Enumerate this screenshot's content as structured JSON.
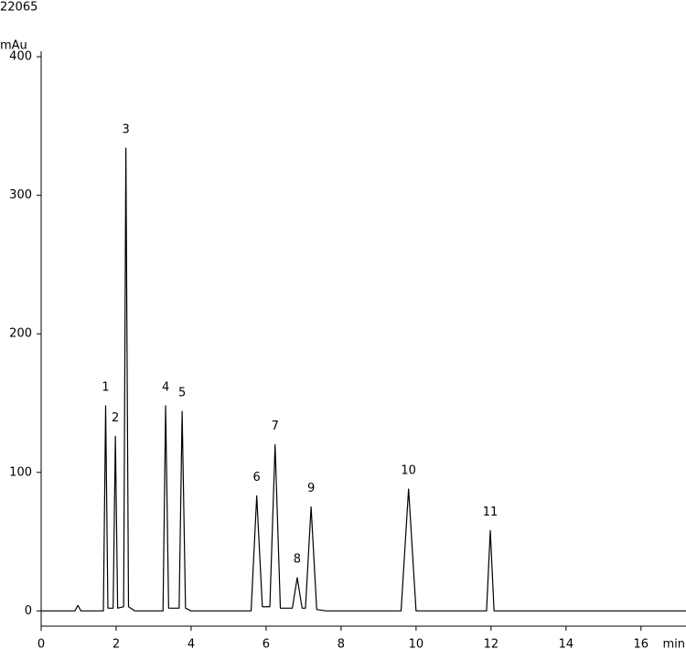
{
  "chart_data": {
    "type": "line",
    "title": "22065",
    "y_label": "mAu",
    "x_label": "min",
    "color": "#000000",
    "x": [
      0,
      0.9,
      0.98,
      1.06,
      1.66,
      1.72,
      1.78,
      1.92,
      1.98,
      2.04,
      2.2,
      2.26,
      2.33,
      2.5,
      3.25,
      3.32,
      3.4,
      3.68,
      3.76,
      3.85,
      4.0,
      5.6,
      5.75,
      5.9,
      6.1,
      6.24,
      6.38,
      6.7,
      6.83,
      6.96,
      7.05,
      7.2,
      7.35,
      7.6,
      9.6,
      9.8,
      10.0,
      11.88,
      11.98,
      12.08,
      17.2
    ],
    "values": [
      0,
      0,
      4,
      0,
      0,
      148,
      2,
      2,
      126,
      2,
      3,
      334,
      3,
      0,
      0,
      148,
      2,
      2,
      144,
      2,
      0,
      0,
      83,
      3,
      3,
      120,
      2,
      2,
      24,
      2,
      2,
      75,
      1,
      0,
      0,
      88,
      0,
      0,
      58,
      0,
      0
    ],
    "annotations": [
      {
        "text": "1",
        "x": 1.72,
        "y": 148
      },
      {
        "text": "2",
        "x": 1.98,
        "y": 126
      },
      {
        "text": "3",
        "x": 2.26,
        "y": 334
      },
      {
        "text": "4",
        "x": 3.32,
        "y": 148
      },
      {
        "text": "5",
        "x": 3.76,
        "y": 144
      },
      {
        "text": "6",
        "x": 5.75,
        "y": 83
      },
      {
        "text": "7",
        "x": 6.24,
        "y": 120
      },
      {
        "text": "8",
        "x": 6.83,
        "y": 24
      },
      {
        "text": "9",
        "x": 7.2,
        "y": 75
      },
      {
        "text": "10",
        "x": 9.8,
        "y": 88
      },
      {
        "text": "11",
        "x": 11.98,
        "y": 58
      }
    ],
    "xlim": [
      0,
      17.2
    ],
    "ylim": [
      -11,
      404
    ],
    "xticks": [
      0,
      2,
      4,
      6,
      8,
      10,
      12,
      14,
      16
    ],
    "yticks": [
      0,
      100,
      200,
      300,
      400
    ],
    "grid": false
  }
}
